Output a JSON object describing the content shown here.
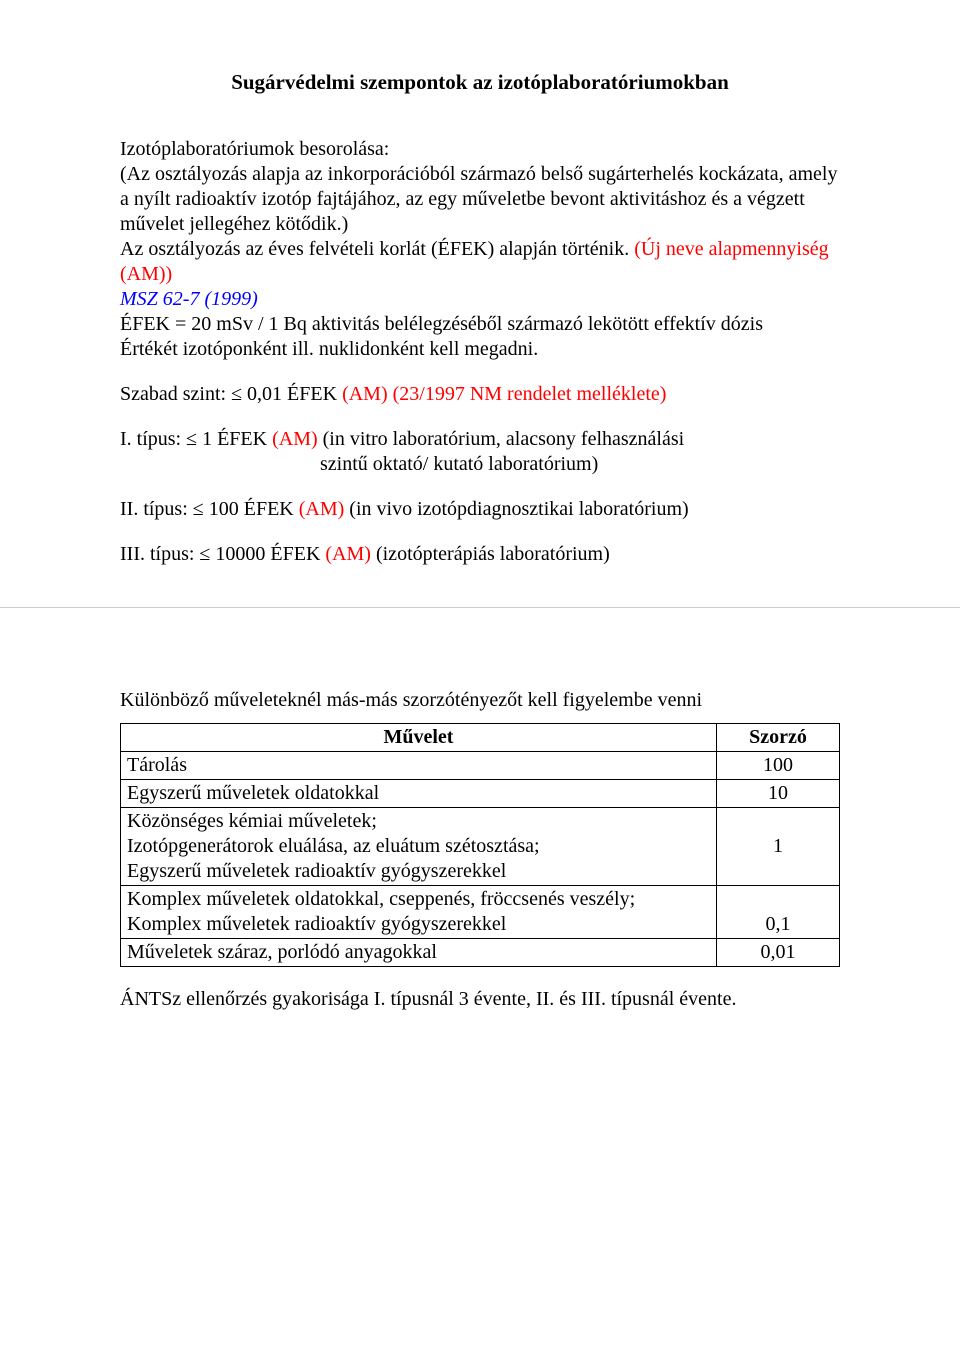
{
  "slide1": {
    "title": "Sugárvédelmi szempontok az izotóplaboratóriumokban",
    "p1": "Izotóplaboratóriumok besorolása:",
    "p2a": "(Az osztályozás alapja az inkorporációból származó belső sugárterhelés kockázata, amely a nyílt radioaktív izotóp fajtájához, az egy műveletbe bevont aktivitáshoz és a végzett művelet jellegéhez kötődik.)",
    "p3": "Az osztályozás az éves felvételi korlát (ÉFEK) alapján történik. ",
    "p3_red": "(Új neve alapmennyiség (AM))",
    "p4_blue": "MSZ 62-7 (1999)",
    "p5": "ÉFEK = 20 mSv / 1 Bq aktivitás belélegzéséből származó lekötött effektív dózis",
    "p6": "Értékét izotóponként ill. nuklidonként kell megadni.",
    "szabad_a": "Szabad szint: ≤ 0,01 ÉFEK ",
    "szabad_am": "(AM)",
    "szabad_b": " (23/1997 NM rendelet melléklete)",
    "t1_a": "I. típus: ≤ 1 ÉFEK ",
    "t1_am": "(AM)",
    "t1_b": " (in vitro laboratórium, alacsony felhasználási",
    "t1_c": "szintű oktató/ kutató laboratórium)",
    "t2_a": "II. típus: ≤ 100 ÉFEK ",
    "t2_am": "(AM)",
    "t2_b": " (in vivo izotópdiagnosztikai laboratórium)",
    "t3_a": "III. típus: ≤ 10000 ÉFEK ",
    "t3_am": "(AM)",
    "t3_b": " (izotópterápiás laboratórium)"
  },
  "slide2": {
    "intro": "Különböző műveleteknél más-más szorzótényezőt kell figyelembe venni",
    "table": {
      "head_op": "Művelet",
      "head_mul": "Szorzó",
      "rows": [
        {
          "op": "Tárolás",
          "mul": "100"
        },
        {
          "op": "Egyszerű műveletek oldatokkal",
          "mul": "10"
        },
        {
          "op": "Közönséges kémiai műveletek;\nIzotópgenerátorok eluálása, az eluátum szétosztása;\nEgyszerű műveletek radioaktív gyógyszerekkel",
          "mul": "1"
        },
        {
          "op": "Komplex műveletek oldatokkal, cseppenés, fröccsenés veszély;\nKomplex műveletek radioaktív gyógyszerekkel",
          "mul": "0,1"
        },
        {
          "op": "Műveletek száraz, porlódó anyagokkal",
          "mul": "0,01"
        }
      ]
    },
    "footer": "ÁNTSz ellenőrzés gyakorisága I. típusnál 3 évente, II. és III. típusnál évente."
  }
}
